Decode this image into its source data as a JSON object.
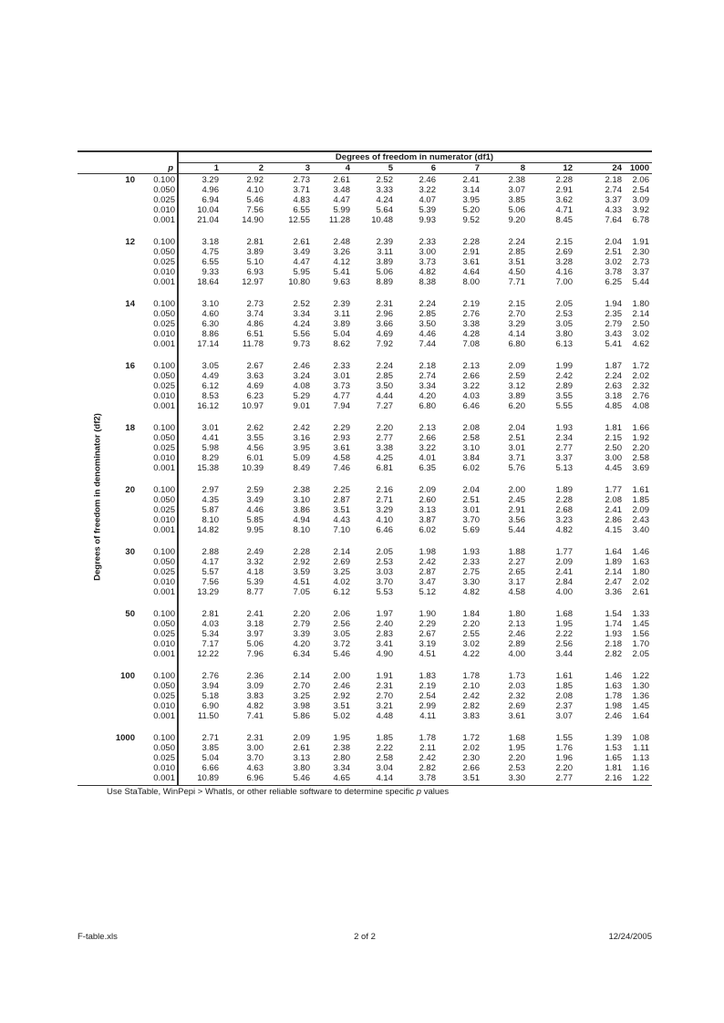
{
  "table": {
    "numerator_title": "Degrees of freedom in numerator (df1)",
    "denominator_title": "Degrees of freedom in denominator (df2)",
    "p_header": "p",
    "df1_columns": [
      "1",
      "2",
      "3",
      "4",
      "5",
      "6",
      "7",
      "8",
      "12",
      "24",
      "1000"
    ],
    "p_levels": [
      "0.100",
      "0.050",
      "0.025",
      "0.010",
      "0.001"
    ],
    "groups": [
      {
        "df2": "10",
        "rows": [
          [
            "3.29",
            "2.92",
            "2.73",
            "2.61",
            "2.52",
            "2.46",
            "2.41",
            "2.38",
            "2.28",
            "2.18",
            "2.06"
          ],
          [
            "4.96",
            "4.10",
            "3.71",
            "3.48",
            "3.33",
            "3.22",
            "3.14",
            "3.07",
            "2.91",
            "2.74",
            "2.54"
          ],
          [
            "6.94",
            "5.46",
            "4.83",
            "4.47",
            "4.24",
            "4.07",
            "3.95",
            "3.85",
            "3.62",
            "3.37",
            "3.09"
          ],
          [
            "10.04",
            "7.56",
            "6.55",
            "5.99",
            "5.64",
            "5.39",
            "5.20",
            "5.06",
            "4.71",
            "4.33",
            "3.92"
          ],
          [
            "21.04",
            "14.90",
            "12.55",
            "11.28",
            "10.48",
            "9.93",
            "9.52",
            "9.20",
            "8.45",
            "7.64",
            "6.78"
          ]
        ]
      },
      {
        "df2": "12",
        "rows": [
          [
            "3.18",
            "2.81",
            "2.61",
            "2.48",
            "2.39",
            "2.33",
            "2.28",
            "2.24",
            "2.15",
            "2.04",
            "1.91"
          ],
          [
            "4.75",
            "3.89",
            "3.49",
            "3.26",
            "3.11",
            "3.00",
            "2.91",
            "2.85",
            "2.69",
            "2.51",
            "2.30"
          ],
          [
            "6.55",
            "5.10",
            "4.47",
            "4.12",
            "3.89",
            "3.73",
            "3.61",
            "3.51",
            "3.28",
            "3.02",
            "2.73"
          ],
          [
            "9.33",
            "6.93",
            "5.95",
            "5.41",
            "5.06",
            "4.82",
            "4.64",
            "4.50",
            "4.16",
            "3.78",
            "3.37"
          ],
          [
            "18.64",
            "12.97",
            "10.80",
            "9.63",
            "8.89",
            "8.38",
            "8.00",
            "7.71",
            "7.00",
            "6.25",
            "5.44"
          ]
        ]
      },
      {
        "df2": "14",
        "rows": [
          [
            "3.10",
            "2.73",
            "2.52",
            "2.39",
            "2.31",
            "2.24",
            "2.19",
            "2.15",
            "2.05",
            "1.94",
            "1.80"
          ],
          [
            "4.60",
            "3.74",
            "3.34",
            "3.11",
            "2.96",
            "2.85",
            "2.76",
            "2.70",
            "2.53",
            "2.35",
            "2.14"
          ],
          [
            "6.30",
            "4.86",
            "4.24",
            "3.89",
            "3.66",
            "3.50",
            "3.38",
            "3.29",
            "3.05",
            "2.79",
            "2.50"
          ],
          [
            "8.86",
            "6.51",
            "5.56",
            "5.04",
            "4.69",
            "4.46",
            "4.28",
            "4.14",
            "3.80",
            "3.43",
            "3.02"
          ],
          [
            "17.14",
            "11.78",
            "9.73",
            "8.62",
            "7.92",
            "7.44",
            "7.08",
            "6.80",
            "6.13",
            "5.41",
            "4.62"
          ]
        ]
      },
      {
        "df2": "16",
        "rows": [
          [
            "3.05",
            "2.67",
            "2.46",
            "2.33",
            "2.24",
            "2.18",
            "2.13",
            "2.09",
            "1.99",
            "1.87",
            "1.72"
          ],
          [
            "4.49",
            "3.63",
            "3.24",
            "3.01",
            "2.85",
            "2.74",
            "2.66",
            "2.59",
            "2.42",
            "2.24",
            "2.02"
          ],
          [
            "6.12",
            "4.69",
            "4.08",
            "3.73",
            "3.50",
            "3.34",
            "3.22",
            "3.12",
            "2.89",
            "2.63",
            "2.32"
          ],
          [
            "8.53",
            "6.23",
            "5.29",
            "4.77",
            "4.44",
            "4.20",
            "4.03",
            "3.89",
            "3.55",
            "3.18",
            "2.76"
          ],
          [
            "16.12",
            "10.97",
            "9.01",
            "7.94",
            "7.27",
            "6.80",
            "6.46",
            "6.20",
            "5.55",
            "4.85",
            "4.08"
          ]
        ]
      },
      {
        "df2": "18",
        "rows": [
          [
            "3.01",
            "2.62",
            "2.42",
            "2.29",
            "2.20",
            "2.13",
            "2.08",
            "2.04",
            "1.93",
            "1.81",
            "1.66"
          ],
          [
            "4.41",
            "3.55",
            "3.16",
            "2.93",
            "2.77",
            "2.66",
            "2.58",
            "2.51",
            "2.34",
            "2.15",
            "1.92"
          ],
          [
            "5.98",
            "4.56",
            "3.95",
            "3.61",
            "3.38",
            "3.22",
            "3.10",
            "3.01",
            "2.77",
            "2.50",
            "2.20"
          ],
          [
            "8.29",
            "6.01",
            "5.09",
            "4.58",
            "4.25",
            "4.01",
            "3.84",
            "3.71",
            "3.37",
            "3.00",
            "2.58"
          ],
          [
            "15.38",
            "10.39",
            "8.49",
            "7.46",
            "6.81",
            "6.35",
            "6.02",
            "5.76",
            "5.13",
            "4.45",
            "3.69"
          ]
        ]
      },
      {
        "df2": "20",
        "rows": [
          [
            "2.97",
            "2.59",
            "2.38",
            "2.25",
            "2.16",
            "2.09",
            "2.04",
            "2.00",
            "1.89",
            "1.77",
            "1.61"
          ],
          [
            "4.35",
            "3.49",
            "3.10",
            "2.87",
            "2.71",
            "2.60",
            "2.51",
            "2.45",
            "2.28",
            "2.08",
            "1.85"
          ],
          [
            "5.87",
            "4.46",
            "3.86",
            "3.51",
            "3.29",
            "3.13",
            "3.01",
            "2.91",
            "2.68",
            "2.41",
            "2.09"
          ],
          [
            "8.10",
            "5.85",
            "4.94",
            "4.43",
            "4.10",
            "3.87",
            "3.70",
            "3.56",
            "3.23",
            "2.86",
            "2.43"
          ],
          [
            "14.82",
            "9.95",
            "8.10",
            "7.10",
            "6.46",
            "6.02",
            "5.69",
            "5.44",
            "4.82",
            "4.15",
            "3.40"
          ]
        ]
      },
      {
        "df2": "30",
        "rows": [
          [
            "2.88",
            "2.49",
            "2.28",
            "2.14",
            "2.05",
            "1.98",
            "1.93",
            "1.88",
            "1.77",
            "1.64",
            "1.46"
          ],
          [
            "4.17",
            "3.32",
            "2.92",
            "2.69",
            "2.53",
            "2.42",
            "2.33",
            "2.27",
            "2.09",
            "1.89",
            "1.63"
          ],
          [
            "5.57",
            "4.18",
            "3.59",
            "3.25",
            "3.03",
            "2.87",
            "2.75",
            "2.65",
            "2.41",
            "2.14",
            "1.80"
          ],
          [
            "7.56",
            "5.39",
            "4.51",
            "4.02",
            "3.70",
            "3.47",
            "3.30",
            "3.17",
            "2.84",
            "2.47",
            "2.02"
          ],
          [
            "13.29",
            "8.77",
            "7.05",
            "6.12",
            "5.53",
            "5.12",
            "4.82",
            "4.58",
            "4.00",
            "3.36",
            "2.61"
          ]
        ]
      },
      {
        "df2": "50",
        "rows": [
          [
            "2.81",
            "2.41",
            "2.20",
            "2.06",
            "1.97",
            "1.90",
            "1.84",
            "1.80",
            "1.68",
            "1.54",
            "1.33"
          ],
          [
            "4.03",
            "3.18",
            "2.79",
            "2.56",
            "2.40",
            "2.29",
            "2.20",
            "2.13",
            "1.95",
            "1.74",
            "1.45"
          ],
          [
            "5.34",
            "3.97",
            "3.39",
            "3.05",
            "2.83",
            "2.67",
            "2.55",
            "2.46",
            "2.22",
            "1.93",
            "1.56"
          ],
          [
            "7.17",
            "5.06",
            "4.20",
            "3.72",
            "3.41",
            "3.19",
            "3.02",
            "2.89",
            "2.56",
            "2.18",
            "1.70"
          ],
          [
            "12.22",
            "7.96",
            "6.34",
            "5.46",
            "4.90",
            "4.51",
            "4.22",
            "4.00",
            "3.44",
            "2.82",
            "2.05"
          ]
        ]
      },
      {
        "df2": "100",
        "rows": [
          [
            "2.76",
            "2.36",
            "2.14",
            "2.00",
            "1.91",
            "1.83",
            "1.78",
            "1.73",
            "1.61",
            "1.46",
            "1.22"
          ],
          [
            "3.94",
            "3.09",
            "2.70",
            "2.46",
            "2.31",
            "2.19",
            "2.10",
            "2.03",
            "1.85",
            "1.63",
            "1.30"
          ],
          [
            "5.18",
            "3.83",
            "3.25",
            "2.92",
            "2.70",
            "2.54",
            "2.42",
            "2.32",
            "2.08",
            "1.78",
            "1.36"
          ],
          [
            "6.90",
            "4.82",
            "3.98",
            "3.51",
            "3.21",
            "2.99",
            "2.82",
            "2.69",
            "2.37",
            "1.98",
            "1.45"
          ],
          [
            "11.50",
            "7.41",
            "5.86",
            "5.02",
            "4.48",
            "4.11",
            "3.83",
            "3.61",
            "3.07",
            "2.46",
            "1.64"
          ]
        ]
      },
      {
        "df2": "1000",
        "rows": [
          [
            "2.71",
            "2.31",
            "2.09",
            "1.95",
            "1.85",
            "1.78",
            "1.72",
            "1.68",
            "1.55",
            "1.39",
            "1.08"
          ],
          [
            "3.85",
            "3.00",
            "2.61",
            "2.38",
            "2.22",
            "2.11",
            "2.02",
            "1.95",
            "1.76",
            "1.53",
            "1.11"
          ],
          [
            "5.04",
            "3.70",
            "3.13",
            "2.80",
            "2.58",
            "2.42",
            "2.30",
            "2.20",
            "1.96",
            "1.65",
            "1.13"
          ],
          [
            "6.66",
            "4.63",
            "3.80",
            "3.34",
            "3.04",
            "2.82",
            "2.66",
            "2.53",
            "2.20",
            "1.81",
            "1.16"
          ],
          [
            "10.89",
            "6.96",
            "5.46",
            "4.65",
            "4.14",
            "3.78",
            "3.51",
            "3.30",
            "2.77",
            "2.16",
            "1.22"
          ]
        ]
      }
    ],
    "note_prefix": "Use StaTable, WinPepi > WhatIs, or other reliable software to determine specific",
    "note_p": "p",
    "note_suffix": " values"
  },
  "footer": {
    "file": "F-table.xls",
    "page": "2 of 2",
    "date": "12/24/2005"
  }
}
